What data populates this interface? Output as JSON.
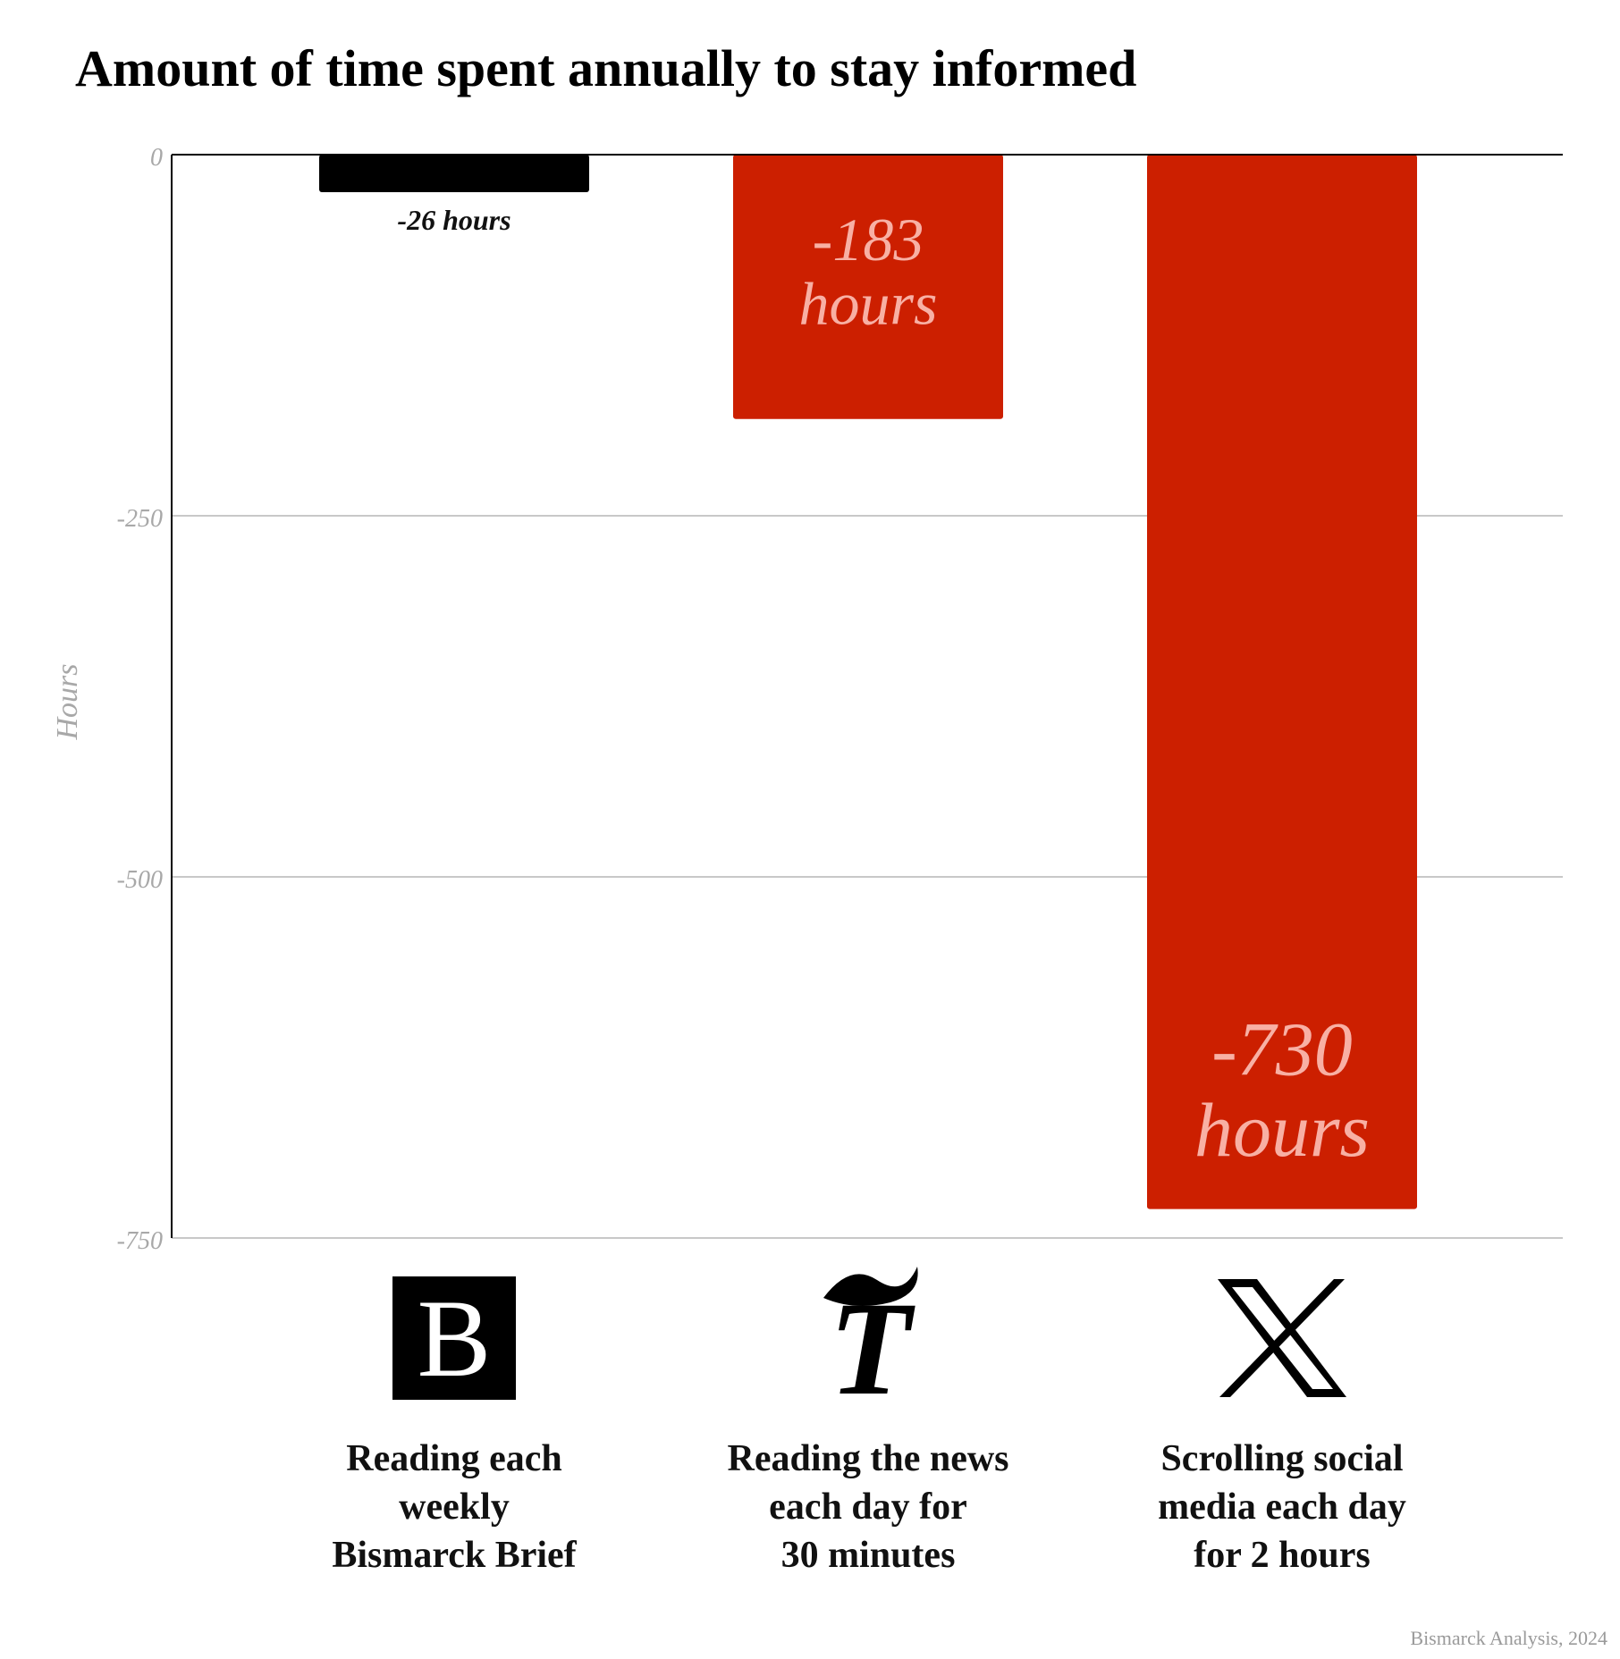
{
  "chart_data": {
    "type": "bar",
    "title": "Amount of  time spent annually to stay informed",
    "ylabel": "Hours",
    "ylim": [
      -750,
      0
    ],
    "yticks": [
      0,
      -250,
      -500,
      -750
    ],
    "ytick_labels": [
      "0",
      "-250",
      "-500",
      "-750"
    ],
    "grid": true,
    "categories": [
      "Reading each weekly Bismarck Brief",
      "Reading the news each day for 30 minutes",
      "Scrolling social media each day for 2 hours"
    ],
    "category_lines": [
      [
        "Reading each",
        "weekly",
        "Bismarck Brief"
      ],
      [
        "Reading the news",
        "each day for",
        "30 minutes"
      ],
      [
        "Scrolling social",
        "media each day",
        "for 2 hours"
      ]
    ],
    "values": [
      -26,
      -183,
      -730
    ],
    "data_labels": [
      {
        "value": "-26",
        "unit": "hours",
        "placement": "below-bar"
      },
      {
        "value": "-183",
        "unit": "hours",
        "placement": "inside-bar"
      },
      {
        "value": "-730",
        "unit": "hours",
        "placement": "inside-bar-bottom"
      }
    ],
    "colors": [
      "#000000",
      "#cc1f00",
      "#cc1f00"
    ],
    "label_color_inside": "#f8b0a4",
    "label_color_outside": "#111111",
    "icons": [
      "bismarck-b-logo",
      "nyt-t-logo",
      "x-logo"
    ],
    "icon_glyphs": [
      "B",
      "T",
      "X"
    ]
  },
  "footer": {
    "credit": "Bismarck Analysis, 2024"
  }
}
